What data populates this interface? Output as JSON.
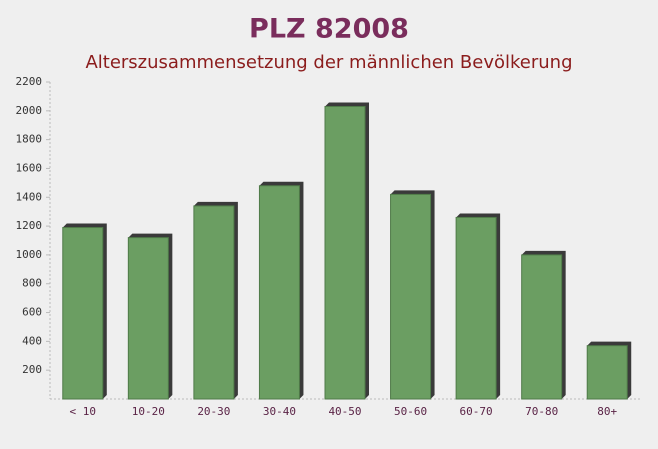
{
  "chart_data": {
    "type": "bar",
    "title": "PLZ 82008",
    "subtitle": "Alterszusammensetzung der männlichen Bevölkerung",
    "categories": [
      "< 10",
      "10-20",
      "20-30",
      "30-40",
      "40-50",
      "50-60",
      "60-70",
      "70-80",
      "80+"
    ],
    "values": [
      1190,
      1120,
      1340,
      1480,
      2030,
      1420,
      1260,
      1000,
      370
    ],
    "color": "#6b9e62",
    "ylim": [
      0,
      2200
    ],
    "yticks": [
      200,
      400,
      600,
      800,
      1000,
      1200,
      1400,
      1600,
      1800,
      2000,
      2200
    ],
    "grid": false
  }
}
